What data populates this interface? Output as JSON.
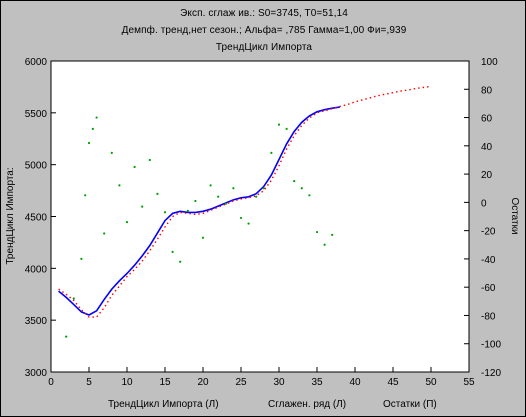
{
  "chart_data": {
    "type": "line",
    "title_lines": [
      "Эксп. сглаж ив.:  S0=3745, T0=51,14",
      "Демпф. тренд,нет сезон.; Альфа= ,785 Гамма=1,00  Фи=,939",
      "ТрендЦикл Импорта"
    ],
    "ylabel_left": "ТрендЦикл Импорта:",
    "ylabel_right": "Остатки",
    "xlim": [
      0,
      55
    ],
    "ylim_left": [
      3000,
      6000
    ],
    "ylim_right": [
      -120,
      100
    ],
    "x_ticks": [
      "0",
      "5",
      "10",
      "15",
      "20",
      "25",
      "30",
      "35",
      "40",
      "45",
      "50",
      "55"
    ],
    "y_ticks_left": [
      "3000",
      "3500",
      "4000",
      "4500",
      "5000",
      "5500",
      "6000"
    ],
    "y_ticks_right": [
      "-120",
      "-100",
      "-80",
      "-60",
      "-40",
      "-20",
      "0",
      "20",
      "40",
      "60",
      "80",
      "100"
    ],
    "grid": false,
    "legend_placement": "bottom",
    "series": [
      {
        "name": "ТрендЦикл Импорта (Л)",
        "axis": "left",
        "style": "solid",
        "color": "#0000ff",
        "x": [
          1,
          2,
          3,
          4,
          5,
          6,
          7,
          8,
          9,
          10,
          11,
          12,
          13,
          14,
          15,
          16,
          17,
          18,
          19,
          20,
          21,
          22,
          23,
          24,
          25,
          26,
          27,
          28,
          29,
          30,
          31,
          32,
          33,
          34,
          35,
          36,
          37,
          38
        ],
        "values": [
          3780,
          3720,
          3650,
          3580,
          3550,
          3590,
          3700,
          3800,
          3880,
          3950,
          4030,
          4120,
          4220,
          4340,
          4460,
          4530,
          4550,
          4540,
          4540,
          4550,
          4570,
          4600,
          4630,
          4660,
          4680,
          4690,
          4720,
          4790,
          4900,
          5050,
          5200,
          5320,
          5410,
          5470,
          5510,
          5530,
          5545,
          5555
        ]
      },
      {
        "name": "Сглажен. ряд (Л)",
        "axis": "left",
        "style": "dotted",
        "color": "#ff0000",
        "x": [
          1,
          2,
          3,
          4,
          5,
          6,
          7,
          8,
          9,
          10,
          11,
          12,
          13,
          14,
          15,
          16,
          17,
          18,
          19,
          20,
          21,
          22,
          23,
          24,
          25,
          26,
          27,
          28,
          29,
          30,
          31,
          32,
          33,
          34,
          35,
          36,
          37,
          38,
          39,
          40,
          41,
          42,
          43,
          44,
          45,
          46,
          47,
          48,
          49,
          50
        ],
        "values": [
          3800,
          3750,
          3690,
          3600,
          3530,
          3530,
          3620,
          3740,
          3830,
          3920,
          3990,
          4070,
          4170,
          4280,
          4400,
          4500,
          4540,
          4530,
          4520,
          4530,
          4560,
          4590,
          4620,
          4650,
          4670,
          4680,
          4700,
          4750,
          4850,
          4990,
          5150,
          5280,
          5380,
          5450,
          5500,
          5520,
          5540,
          5560,
          5580,
          5605,
          5625,
          5645,
          5665,
          5680,
          5695,
          5710,
          5720,
          5735,
          5745,
          5755
        ]
      },
      {
        "name": "Остатки (П)",
        "axis": "right",
        "style": "points",
        "color": "#00a000",
        "x": [
          2,
          3,
          4,
          4.5,
          5,
          5.5,
          6,
          7,
          8,
          9,
          10,
          11,
          12,
          13,
          14,
          15,
          16,
          17,
          18,
          19,
          20,
          21,
          22,
          23,
          24,
          25,
          26,
          27,
          28,
          29,
          30,
          31,
          32,
          33,
          34,
          35,
          36,
          37
        ],
        "values": [
          -95,
          -68,
          -40,
          5,
          42,
          52,
          60,
          -22,
          35,
          12,
          -14,
          25,
          -3,
          30,
          6,
          -7,
          -35,
          -42,
          -6,
          1,
          -25,
          12,
          4,
          -1,
          10,
          -11,
          -15,
          4,
          10,
          35,
          55,
          52,
          15,
          10,
          5,
          -21,
          -30,
          -23
        ]
      }
    ]
  }
}
